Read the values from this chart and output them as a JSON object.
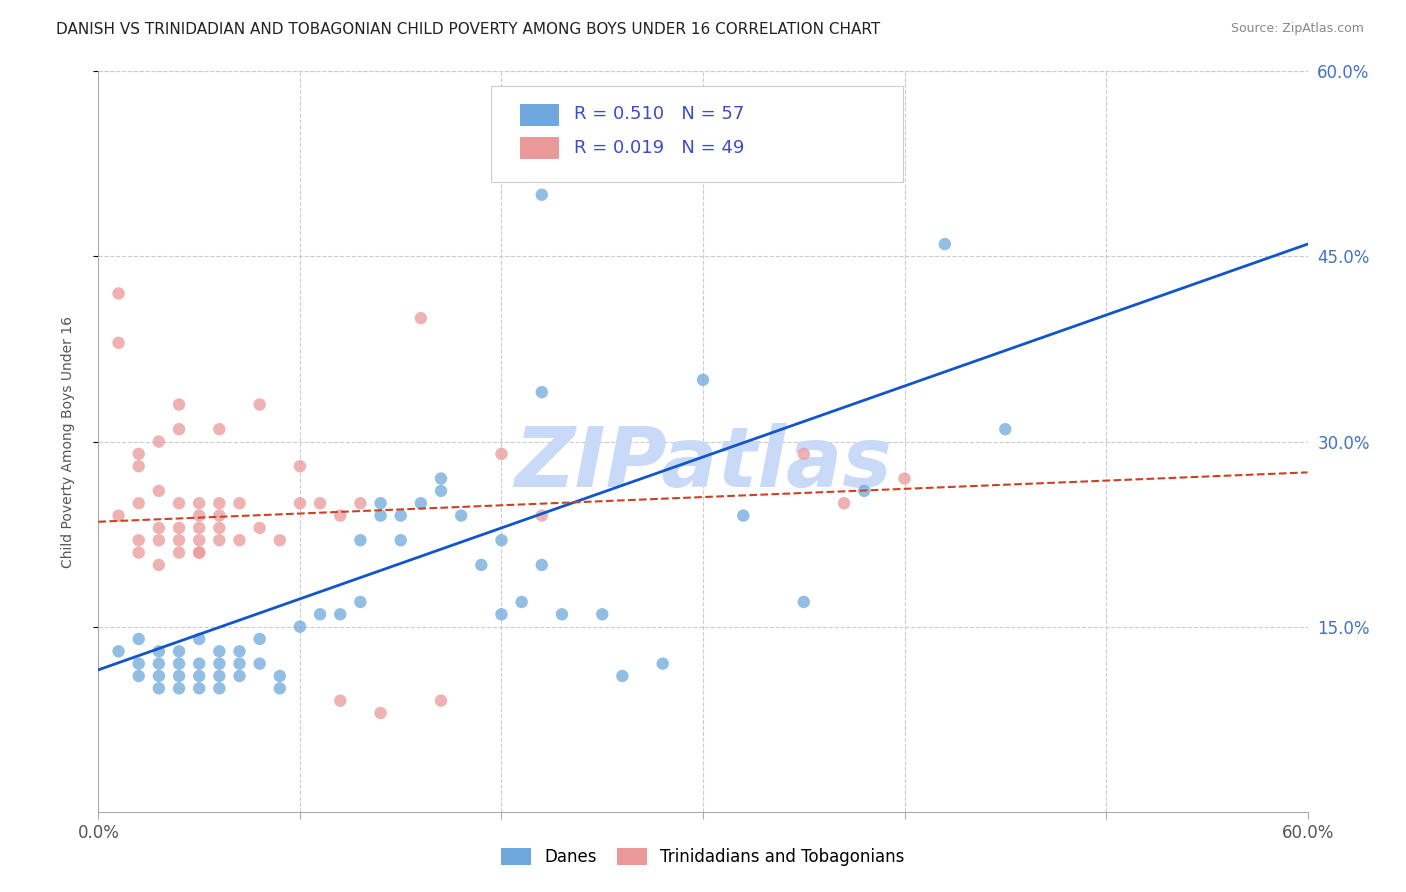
{
  "title": "DANISH VS TRINIDADIAN AND TOBAGONIAN CHILD POVERTY AMONG BOYS UNDER 16 CORRELATION CHART",
  "source": "Source: ZipAtlas.com",
  "ylabel": "Child Poverty Among Boys Under 16",
  "xlim": [
    0.0,
    0.6
  ],
  "ylim": [
    0.0,
    0.6
  ],
  "yticks": [
    0.15,
    0.3,
    0.45,
    0.6
  ],
  "yticklabels_right": [
    "15.0%",
    "30.0%",
    "45.0%",
    "60.0%"
  ],
  "danes_R": 0.51,
  "danes_N": 57,
  "tnt_R": 0.019,
  "tnt_N": 49,
  "danes_color": "#6fa8dc",
  "tnt_color": "#ea9999",
  "trendline_danes_color": "#1155cc",
  "trendline_tnt_color": "#cc4125",
  "watermark_color": "#c9daf8",
  "background_color": "#ffffff",
  "grid_color": "#cccccc",
  "danes_scatter": [
    [
      0.01,
      0.13
    ],
    [
      0.02,
      0.12
    ],
    [
      0.02,
      0.14
    ],
    [
      0.02,
      0.11
    ],
    [
      0.03,
      0.11
    ],
    [
      0.03,
      0.12
    ],
    [
      0.03,
      0.1
    ],
    [
      0.03,
      0.13
    ],
    [
      0.04,
      0.12
    ],
    [
      0.04,
      0.11
    ],
    [
      0.04,
      0.1
    ],
    [
      0.04,
      0.13
    ],
    [
      0.05,
      0.12
    ],
    [
      0.05,
      0.14
    ],
    [
      0.05,
      0.11
    ],
    [
      0.05,
      0.1
    ],
    [
      0.06,
      0.11
    ],
    [
      0.06,
      0.12
    ],
    [
      0.06,
      0.13
    ],
    [
      0.06,
      0.1
    ],
    [
      0.07,
      0.12
    ],
    [
      0.07,
      0.11
    ],
    [
      0.07,
      0.13
    ],
    [
      0.08,
      0.14
    ],
    [
      0.08,
      0.12
    ],
    [
      0.09,
      0.11
    ],
    [
      0.09,
      0.1
    ],
    [
      0.1,
      0.15
    ],
    [
      0.11,
      0.16
    ],
    [
      0.12,
      0.16
    ],
    [
      0.13,
      0.17
    ],
    [
      0.13,
      0.22
    ],
    [
      0.14,
      0.24
    ],
    [
      0.14,
      0.25
    ],
    [
      0.15,
      0.22
    ],
    [
      0.15,
      0.24
    ],
    [
      0.16,
      0.25
    ],
    [
      0.17,
      0.26
    ],
    [
      0.17,
      0.27
    ],
    [
      0.18,
      0.24
    ],
    [
      0.19,
      0.2
    ],
    [
      0.2,
      0.16
    ],
    [
      0.2,
      0.22
    ],
    [
      0.21,
      0.17
    ],
    [
      0.22,
      0.34
    ],
    [
      0.22,
      0.2
    ],
    [
      0.23,
      0.16
    ],
    [
      0.25,
      0.16
    ],
    [
      0.26,
      0.11
    ],
    [
      0.28,
      0.12
    ],
    [
      0.3,
      0.35
    ],
    [
      0.32,
      0.24
    ],
    [
      0.35,
      0.17
    ],
    [
      0.38,
      0.26
    ],
    [
      0.22,
      0.5
    ],
    [
      0.42,
      0.46
    ],
    [
      0.45,
      0.31
    ]
  ],
  "tnt_scatter": [
    [
      0.01,
      0.24
    ],
    [
      0.01,
      0.38
    ],
    [
      0.01,
      0.42
    ],
    [
      0.02,
      0.21
    ],
    [
      0.02,
      0.25
    ],
    [
      0.02,
      0.28
    ],
    [
      0.02,
      0.29
    ],
    [
      0.02,
      0.22
    ],
    [
      0.03,
      0.26
    ],
    [
      0.03,
      0.23
    ],
    [
      0.03,
      0.3
    ],
    [
      0.03,
      0.22
    ],
    [
      0.03,
      0.2
    ],
    [
      0.04,
      0.25
    ],
    [
      0.04,
      0.23
    ],
    [
      0.04,
      0.22
    ],
    [
      0.04,
      0.31
    ],
    [
      0.04,
      0.33
    ],
    [
      0.04,
      0.21
    ],
    [
      0.05,
      0.25
    ],
    [
      0.05,
      0.24
    ],
    [
      0.05,
      0.22
    ],
    [
      0.05,
      0.21
    ],
    [
      0.05,
      0.23
    ],
    [
      0.05,
      0.21
    ],
    [
      0.06,
      0.23
    ],
    [
      0.06,
      0.25
    ],
    [
      0.06,
      0.31
    ],
    [
      0.06,
      0.24
    ],
    [
      0.06,
      0.22
    ],
    [
      0.07,
      0.25
    ],
    [
      0.07,
      0.22
    ],
    [
      0.08,
      0.23
    ],
    [
      0.08,
      0.33
    ],
    [
      0.09,
      0.22
    ],
    [
      0.1,
      0.25
    ],
    [
      0.1,
      0.28
    ],
    [
      0.11,
      0.25
    ],
    [
      0.12,
      0.09
    ],
    [
      0.12,
      0.24
    ],
    [
      0.13,
      0.25
    ],
    [
      0.14,
      0.08
    ],
    [
      0.16,
      0.4
    ],
    [
      0.17,
      0.09
    ],
    [
      0.2,
      0.29
    ],
    [
      0.22,
      0.24
    ],
    [
      0.35,
      0.29
    ],
    [
      0.37,
      0.25
    ],
    [
      0.4,
      0.27
    ]
  ],
  "danes_trendline_x": [
    0.0,
    0.6
  ],
  "danes_trendline_y": [
    0.115,
    0.46
  ],
  "tnt_trendline_x": [
    0.0,
    0.6
  ],
  "tnt_trendline_y": [
    0.235,
    0.275
  ]
}
